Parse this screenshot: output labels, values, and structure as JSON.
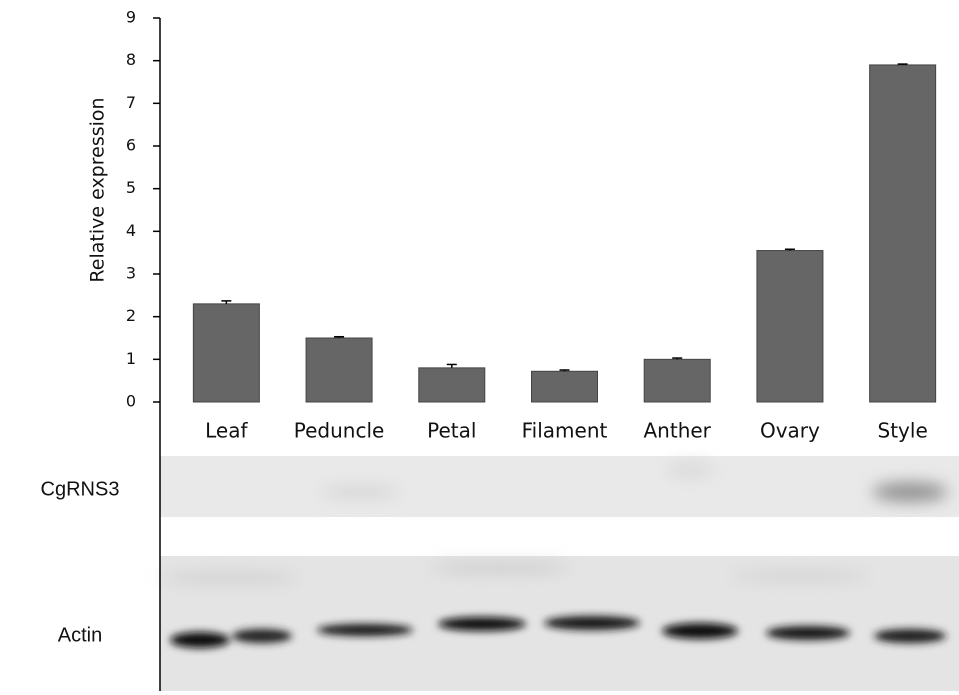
{
  "chart_data": {
    "type": "bar",
    "y_label": "Relative expression",
    "categories": [
      "Leaf",
      "Peduncle",
      "Petal",
      "Filament",
      "Anther",
      "Ovary",
      "Style"
    ],
    "values": [
      2.3,
      1.5,
      0.8,
      0.72,
      1.0,
      3.55,
      7.9
    ],
    "errors": [
      0.07,
      0.03,
      0.08,
      0.03,
      0.03,
      0.03,
      0.02
    ],
    "color": "#666666",
    "ylim": [
      0,
      9
    ],
    "yticks": [
      0,
      1,
      2,
      3,
      4,
      5,
      6,
      7,
      8,
      9
    ],
    "grid": false
  },
  "blot": {
    "rows": [
      "CgRNS3",
      "Actin"
    ]
  }
}
